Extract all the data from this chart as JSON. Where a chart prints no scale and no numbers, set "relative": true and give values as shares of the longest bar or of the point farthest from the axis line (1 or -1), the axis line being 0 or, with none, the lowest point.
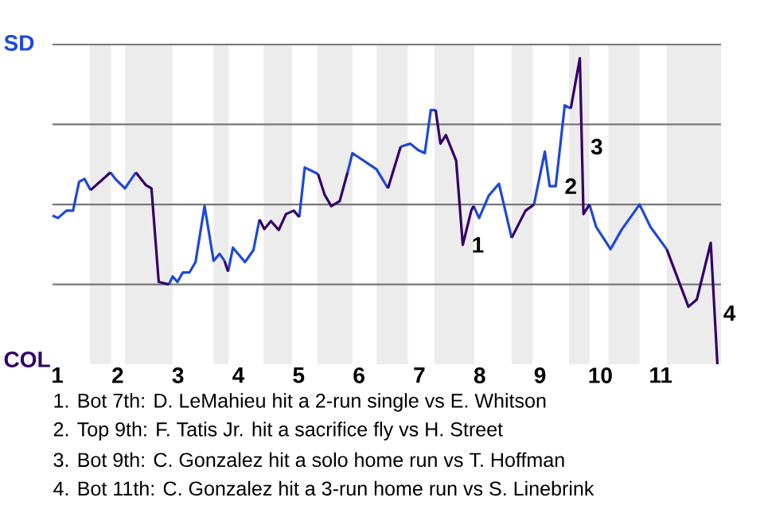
{
  "chart_data": {
    "type": "line",
    "relative": true,
    "xlim": [
      0.92,
      12
    ],
    "xticks": [
      1,
      2,
      3,
      4,
      5,
      6,
      7,
      8,
      9,
      10,
      11
    ],
    "marker": "none",
    "line_style": "solid",
    "series": [
      {
        "color": "#1f48d8",
        "x": [
          0.92,
          1.01,
          1.15,
          1.26,
          1.36,
          1.45,
          1.55,
          null,
          1.88,
          1.96,
          2.12,
          2.3,
          null,
          2.85,
          2.91,
          2.99,
          3.08,
          3.19,
          3.29,
          3.44,
          3.59,
          3.69,
          3.77,
          null,
          3.83,
          3.91,
          4.11,
          4.25,
          4.35,
          null,
          5.01,
          5.1,
          5.32,
          null,
          5.81,
          5.89,
          6.29,
          6.48,
          null,
          6.69,
          6.85,
          6.98,
          7.09,
          7.19,
          7.27,
          null,
          7.9,
          7.99,
          8.15,
          8.32,
          8.53,
          null,
          8.9,
          9.08,
          9.16,
          9.26,
          9.41,
          9.51,
          null,
          9.82,
          9.93,
          10.17,
          10.35,
          10.65,
          10.83,
          11.1
        ],
        "values": [
          0.486,
          0.478,
          0.502,
          0.502,
          0.596,
          0.606,
          0.569,
          null,
          0.627,
          0.606,
          0.575,
          0.627,
          null,
          0.261,
          0.287,
          0.269,
          0.3,
          0.3,
          0.334,
          0.517,
          0.338,
          0.361,
          0.338,
          null,
          0.303,
          0.381,
          0.334,
          0.373,
          0.473,
          null,
          0.481,
          0.643,
          0.622,
          null,
          0.627,
          0.69,
          0.637,
          0.575,
          null,
          0.711,
          0.721,
          0.7,
          0.69,
          0.831,
          0.831,
          null,
          0.517,
          0.478,
          0.551,
          0.59,
          0.413,
          null,
          0.522,
          0.695,
          0.582,
          0.582,
          0.846,
          0.836,
          null,
          0.522,
          0.449,
          0.376,
          0.439,
          0.522,
          0.449,
          0.376
        ]
      },
      {
        "color": "#330066",
        "x": [
          1.55,
          1.88,
          null,
          2.3,
          2.47,
          2.56,
          2.68,
          2.85,
          null,
          3.77,
          3.83,
          null,
          4.35,
          4.43,
          4.54,
          4.67,
          4.79,
          4.92,
          5.01,
          null,
          5.32,
          5.43,
          5.54,
          5.68,
          5.81,
          null,
          6.48,
          6.69,
          null,
          7.27,
          7.35,
          7.44,
          7.61,
          7.72,
          7.86,
          7.9,
          null,
          8.53,
          8.76,
          8.9,
          null,
          9.51,
          9.66,
          9.72,
          9.82,
          null,
          11.1,
          11.46,
          11.6,
          11.83,
          11.94
        ],
        "values": [
          0.569,
          0.627,
          null,
          0.627,
          0.585,
          0.575,
          0.269,
          0.261,
          null,
          0.338,
          0.303,
          null,
          0.473,
          0.442,
          0.468,
          0.439,
          0.491,
          0.502,
          0.481,
          null,
          0.622,
          0.554,
          0.517,
          0.533,
          0.627,
          null,
          0.575,
          0.711,
          null,
          0.831,
          0.721,
          0.749,
          0.666,
          0.39,
          0.502,
          0.517,
          null,
          0.413,
          0.502,
          0.522,
          null,
          0.836,
          1,
          0.491,
          0.522,
          null,
          0.376,
          0.188,
          0.212,
          0.397,
          0
        ]
      }
    ],
    "ref_lines": [
      {
        "axis": "y",
        "value": 0.261,
        "color": "#777777"
      },
      {
        "axis": "y",
        "value": 0.522,
        "color": "#777777"
      },
      {
        "axis": "y",
        "value": 0.784,
        "color": "#777777"
      },
      {
        "axis": "y",
        "value": 1.045,
        "color": "#777777"
      }
    ],
    "bands": [
      {
        "axis": "x",
        "from": 1.54,
        "to": 1.89,
        "color": "#ececec"
      },
      {
        "axis": "x",
        "from": 2.12,
        "to": 2.91,
        "color": "#ececec"
      },
      {
        "axis": "x",
        "from": 3.59,
        "to": 3.84,
        "color": "#ececec"
      },
      {
        "axis": "x",
        "from": 4.42,
        "to": 4.89,
        "color": "#ececec"
      },
      {
        "axis": "x",
        "from": 5.31,
        "to": 5.89,
        "color": "#ececec"
      },
      {
        "axis": "x",
        "from": 6.29,
        "to": 6.81,
        "color": "#ececec"
      },
      {
        "axis": "x",
        "from": 7.25,
        "to": 7.91,
        "color": "#ececec"
      },
      {
        "axis": "x",
        "from": 8.53,
        "to": 8.88,
        "color": "#ececec"
      },
      {
        "axis": "x",
        "from": 9.48,
        "to": 9.82,
        "color": "#ececec"
      },
      {
        "axis": "x",
        "from": 10.13,
        "to": 10.65,
        "color": "#ececec"
      },
      {
        "axis": "x",
        "from": 11.1,
        "to": 12,
        "color": "#ececec"
      }
    ],
    "annotations": [
      "SD",
      "COL",
      {
        "text": "1",
        "x": 7.72,
        "y": 0.39
      },
      {
        "text": "2",
        "x": 9.26,
        "y": 0.582
      },
      {
        "text": "3",
        "x": 9.69,
        "y": 0.711
      },
      {
        "text": "4",
        "x": 11.89,
        "y": 0.167
      },
      "1. Bot 7th: D. LeMahieu hit a 2-run single vs E. Whitson",
      "2. Top 9th: F. Tatis Jr. hit a sacrifice fly vs H. Street",
      "3. Bot 9th: C. Gonzalez hit a solo home run vs T. Hoffman",
      "4. Bot 11th: C. Gonzalez hit a 3-run home run vs S. Linebrink"
    ]
  }
}
